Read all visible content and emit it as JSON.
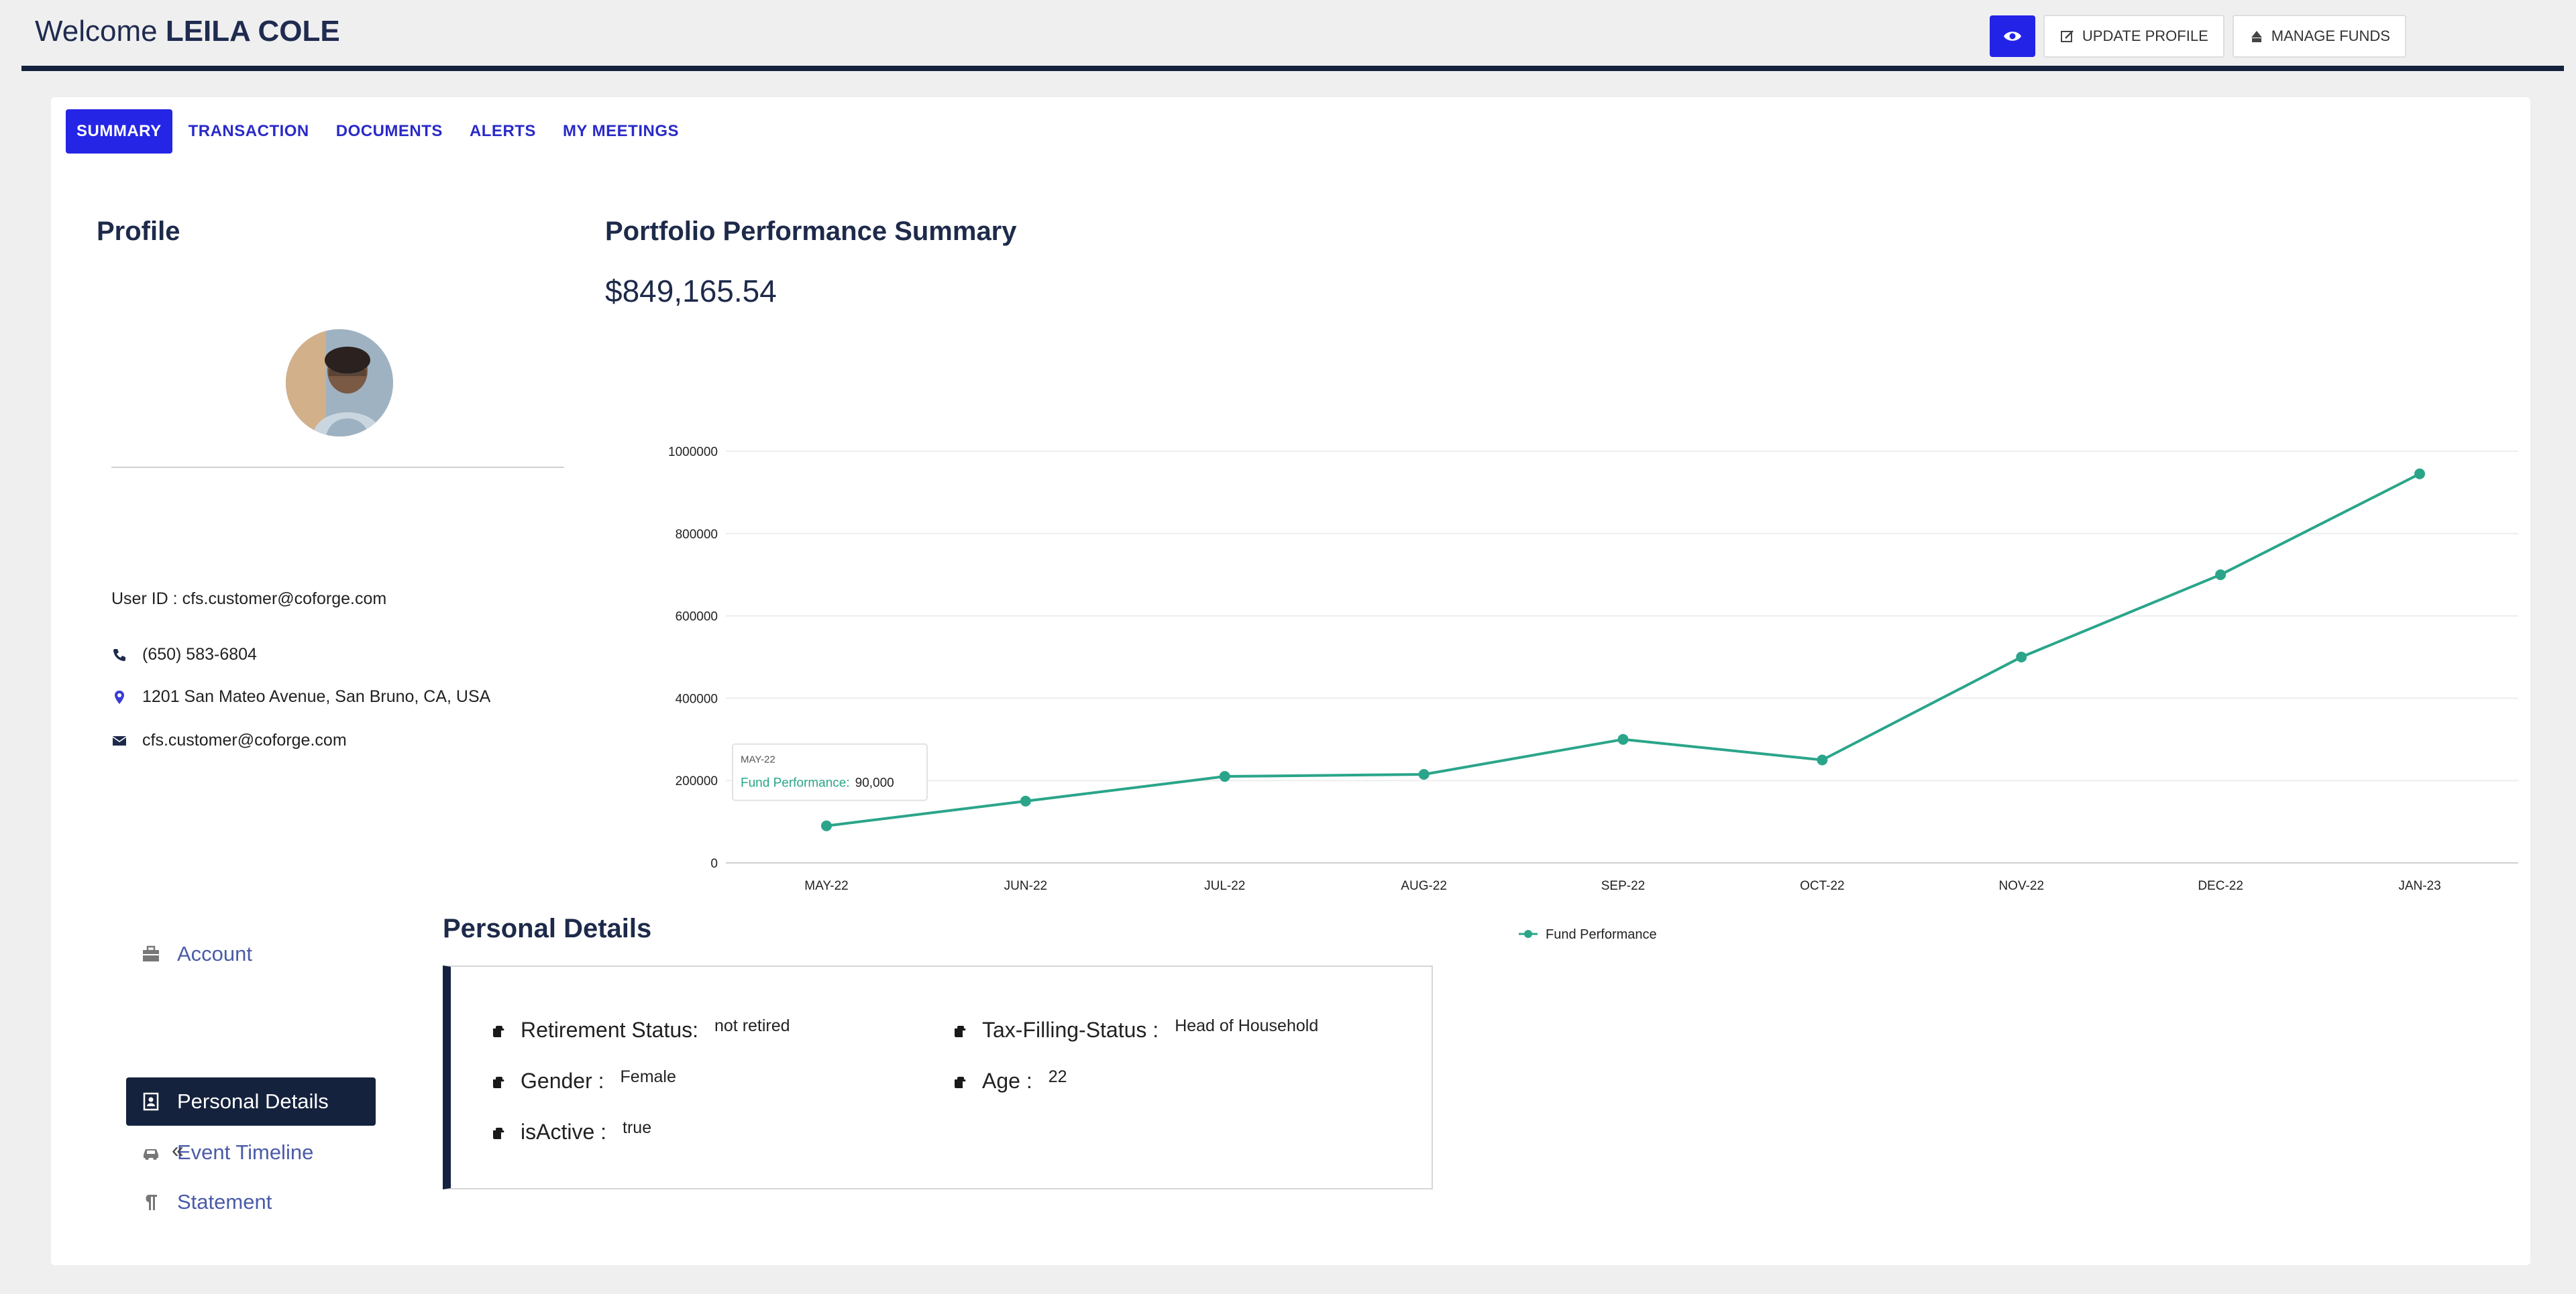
{
  "header": {
    "welcome_prefix": "Welcome",
    "user_name": "LEILA COLE",
    "update_profile_label": "UPDATE PROFILE",
    "manage_funds_label": "MANAGE FUNDS"
  },
  "tabs": [
    {
      "label": "SUMMARY",
      "active": true
    },
    {
      "label": "TRANSACTION"
    },
    {
      "label": "DOCUMENTS"
    },
    {
      "label": "ALERTS"
    },
    {
      "label": "MY MEETINGS"
    }
  ],
  "profile": {
    "title": "Profile",
    "user_id": "User ID : cfs.customer@coforge.com",
    "phone": "(650) 583-6804",
    "address": "1201 San Mateo Avenue, San Bruno, CA, USA",
    "email": "cfs.customer@coforge.com"
  },
  "performance": {
    "title": "Portfolio Performance Summary",
    "total": "$849,165.54"
  },
  "chart_data": {
    "type": "line",
    "categories": [
      "MAY-22",
      "JUN-22",
      "JUL-22",
      "AUG-22",
      "SEP-22",
      "OCT-22",
      "NOV-22",
      "DEC-22",
      "JAN-23"
    ],
    "series": [
      {
        "name": "Fund Performance",
        "values": [
          90000,
          150000,
          210000,
          215000,
          300000,
          250000,
          500000,
          700000,
          945000
        ]
      }
    ],
    "y_ticks": [
      "0",
      "200000",
      "400000",
      "600000",
      "800000",
      "1000000"
    ],
    "ylim": [
      0,
      1000000
    ],
    "grid": true,
    "legend": "bottom-center",
    "color": "#2aa58a",
    "tooltip": {
      "title": "MAY-22",
      "label": "Fund Performance:",
      "value": "90,000"
    }
  },
  "side_menu": {
    "items": [
      {
        "label": "Account",
        "icon": "briefcase-icon"
      },
      {
        "label": "Personal Details",
        "icon": "id-card-icon",
        "active": true
      },
      {
        "label": "Event Timeline",
        "icon": "car-icon"
      },
      {
        "label": "Statement",
        "icon": "paragraph-icon"
      }
    ],
    "collapse_label": "«"
  },
  "personal_details": {
    "title": "Personal Details",
    "retirement_label": "Retirement Status:",
    "retirement_value": "not retired",
    "tax_label": "Tax-Filling-Status :",
    "tax_value": "Head of Household",
    "gender_label": "Gender :",
    "gender_value": "Female",
    "age_label": "Age :",
    "age_value": "22",
    "active_label": "isActive :",
    "active_value": "true"
  }
}
